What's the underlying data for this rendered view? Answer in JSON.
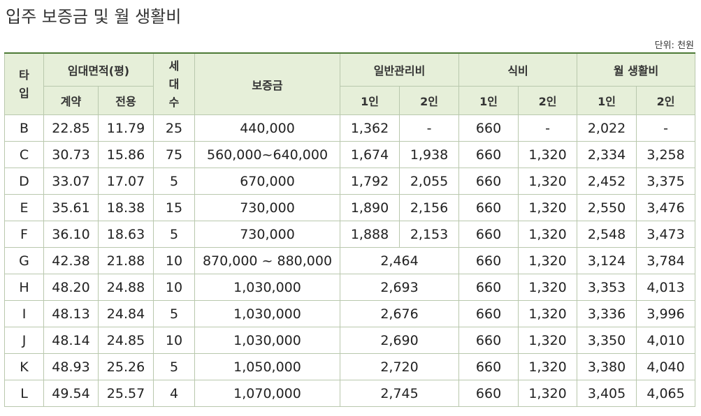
{
  "title": "입주 보증금 및 월 생활비",
  "unit": "단위: 천원",
  "headers": {
    "type": [
      "타",
      "입"
    ],
    "area": "임대면적(평)",
    "area_contract": "계약",
    "area_exclusive": "전용",
    "households": [
      "세",
      "대",
      "수"
    ],
    "deposit": "보증금",
    "mgmt": "일반관리비",
    "food": "식비",
    "living": "월 생활비",
    "one": "1인",
    "two": "2인"
  },
  "rows": [
    {
      "type": "B",
      "contract": "22.85",
      "exclusive": "11.79",
      "households": "25",
      "deposit": "440,000",
      "mgmt1": "1,362",
      "mgmt2": "-",
      "food1": "660",
      "food2": "-",
      "living1": "2,022",
      "living2": "-"
    },
    {
      "type": "C",
      "contract": "30.73",
      "exclusive": "15.86",
      "households": "75",
      "deposit": "560,000~640,000",
      "mgmt1": "1,674",
      "mgmt2": "1,938",
      "food1": "660",
      "food2": "1,320",
      "living1": "2,334",
      "living2": "3,258"
    },
    {
      "type": "D",
      "contract": "33.07",
      "exclusive": "17.07",
      "households": "5",
      "deposit": "670,000",
      "mgmt1": "1,792",
      "mgmt2": "2,055",
      "food1": "660",
      "food2": "1,320",
      "living1": "2,452",
      "living2": "3,375"
    },
    {
      "type": "E",
      "contract": "35.61",
      "exclusive": "18.38",
      "households": "15",
      "deposit": "730,000",
      "mgmt1": "1,890",
      "mgmt2": "2,156",
      "food1": "660",
      "food2": "1,320",
      "living1": "2,550",
      "living2": "3,476"
    },
    {
      "type": "F",
      "contract": "36.10",
      "exclusive": "18.63",
      "households": "5",
      "deposit": "730,000",
      "mgmt1": "1,888",
      "mgmt2": "2,153",
      "food1": "660",
      "food2": "1,320",
      "living1": "2,548",
      "living2": "3,473"
    },
    {
      "type": "G",
      "contract": "42.38",
      "exclusive": "21.88",
      "households": "10",
      "deposit": "870,000 ~ 880,000",
      "mgmt": "2,464",
      "food1": "660",
      "food2": "1,320",
      "living1": "3,124",
      "living2": "3,784"
    },
    {
      "type": "H",
      "contract": "48.20",
      "exclusive": "24.88",
      "households": "10",
      "deposit": "1,030,000",
      "mgmt": "2,693",
      "food1": "660",
      "food2": "1,320",
      "living1": "3,353",
      "living2": "4,013"
    },
    {
      "type": "I",
      "contract": "48.13",
      "exclusive": "24.84",
      "households": "5",
      "deposit": "1,030,000",
      "mgmt": "2,676",
      "food1": "660",
      "food2": "1,320",
      "living1": "3,336",
      "living2": "3,996"
    },
    {
      "type": "J",
      "contract": "48.14",
      "exclusive": "24.85",
      "households": "10",
      "deposit": "1,030,000",
      "mgmt": "2,690",
      "food1": "660",
      "food2": "1,320",
      "living1": "3,350",
      "living2": "4,010"
    },
    {
      "type": "K",
      "contract": "48.93",
      "exclusive": "25.26",
      "households": "5",
      "deposit": "1,050,000",
      "mgmt": "2,720",
      "food1": "660",
      "food2": "1,320",
      "living1": "3,380",
      "living2": "4,040"
    },
    {
      "type": "L",
      "contract": "49.54",
      "exclusive": "25.57",
      "households": "4",
      "deposit": "1,070,000",
      "mgmt": "2,745",
      "food1": "660",
      "food2": "1,320",
      "living1": "3,405",
      "living2": "4,065"
    }
  ]
}
